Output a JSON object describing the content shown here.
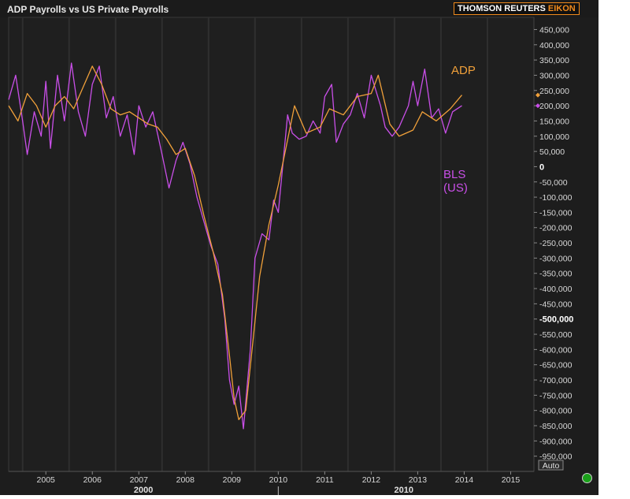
{
  "window": {
    "title": "ADP Payrolls vs US Private Payrolls",
    "brand_main": "THOMSON REUTERS",
    "brand_accent": "EIKON",
    "auto_button": "Auto",
    "status_icon": "green-status-dot-icon"
  },
  "colors": {
    "background": "#1d1d1d",
    "adp": "#f0a03a",
    "bls": "#c94fe8",
    "text": "#d8d8d8",
    "brand_accent": "#f08a1c"
  },
  "chart_data": {
    "type": "line",
    "title": "ADP Payrolls vs US Private Payrolls",
    "xlabel": "",
    "ylabel": "",
    "xlim": [
      2004.2,
      2015.5
    ],
    "ylim": [
      -1000000,
      490000
    ],
    "x_ticks": [
      "2005",
      "2006",
      "2007",
      "2008",
      "2009",
      "2010",
      "2011",
      "2012",
      "2013",
      "2014",
      "2015"
    ],
    "decade_labels": [
      "2000",
      "2010"
    ],
    "y_ticks": [
      450000,
      400000,
      350000,
      300000,
      250000,
      200000,
      150000,
      100000,
      50000,
      0,
      -50000,
      -100000,
      -150000,
      -200000,
      -250000,
      -300000,
      -350000,
      -400000,
      -450000,
      -500000,
      -550000,
      -600000,
      -650000,
      -700000,
      -750000,
      -800000,
      -850000,
      -900000,
      -950000
    ],
    "y_tick_labels": [
      "450,000",
      "400,000",
      "350,000",
      "300,000",
      "250,000",
      "200,000",
      "150,000",
      "100,000",
      "50,000",
      "0",
      "-50,000",
      "-100,000",
      "-150,000",
      "-200,000",
      "-250,000",
      "-300,000",
      "-350,000",
      "-400,000",
      "-450,000",
      "-500,000",
      "-550,000",
      "-600,000",
      "-650,000",
      "-700,000",
      "-750,000",
      "-800,000",
      "-850,000",
      "-900,000",
      "-950,000"
    ],
    "grid": "vertical",
    "series": [
      {
        "name": "ADP",
        "label_lines": [
          "ADP"
        ],
        "last_value": 235000,
        "points": [
          [
            2004.2,
            200000
          ],
          [
            2004.4,
            150000
          ],
          [
            2004.6,
            240000
          ],
          [
            2004.8,
            200000
          ],
          [
            2005.0,
            130000
          ],
          [
            2005.2,
            200000
          ],
          [
            2005.4,
            230000
          ],
          [
            2005.6,
            190000
          ],
          [
            2005.8,
            260000
          ],
          [
            2006.0,
            330000
          ],
          [
            2006.2,
            270000
          ],
          [
            2006.4,
            190000
          ],
          [
            2006.6,
            170000
          ],
          [
            2006.8,
            180000
          ],
          [
            2007.0,
            160000
          ],
          [
            2007.2,
            140000
          ],
          [
            2007.4,
            130000
          ],
          [
            2007.6,
            90000
          ],
          [
            2007.8,
            40000
          ],
          [
            2008.0,
            60000
          ],
          [
            2008.2,
            -30000
          ],
          [
            2008.4,
            -160000
          ],
          [
            2008.6,
            -280000
          ],
          [
            2008.8,
            -420000
          ],
          [
            2008.95,
            -620000
          ],
          [
            2009.05,
            -760000
          ],
          [
            2009.15,
            -830000
          ],
          [
            2009.3,
            -800000
          ],
          [
            2009.45,
            -580000
          ],
          [
            2009.6,
            -360000
          ],
          [
            2009.8,
            -190000
          ],
          [
            2010.0,
            -60000
          ],
          [
            2010.15,
            50000
          ],
          [
            2010.35,
            200000
          ],
          [
            2010.6,
            110000
          ],
          [
            2010.9,
            130000
          ],
          [
            2011.1,
            190000
          ],
          [
            2011.4,
            170000
          ],
          [
            2011.7,
            230000
          ],
          [
            2012.0,
            240000
          ],
          [
            2012.15,
            300000
          ],
          [
            2012.4,
            140000
          ],
          [
            2012.6,
            100000
          ],
          [
            2012.9,
            120000
          ],
          [
            2013.1,
            180000
          ],
          [
            2013.4,
            150000
          ],
          [
            2013.7,
            190000
          ],
          [
            2013.95,
            235000
          ]
        ]
      },
      {
        "name": "BLS (US)",
        "label_lines": [
          "BLS",
          "(US)"
        ],
        "last_value": 200000,
        "points": [
          [
            2004.2,
            220000
          ],
          [
            2004.35,
            300000
          ],
          [
            2004.5,
            150000
          ],
          [
            2004.6,
            40000
          ],
          [
            2004.75,
            180000
          ],
          [
            2004.9,
            100000
          ],
          [
            2005.0,
            280000
          ],
          [
            2005.1,
            60000
          ],
          [
            2005.25,
            300000
          ],
          [
            2005.4,
            150000
          ],
          [
            2005.55,
            340000
          ],
          [
            2005.7,
            180000
          ],
          [
            2005.85,
            100000
          ],
          [
            2006.0,
            270000
          ],
          [
            2006.15,
            330000
          ],
          [
            2006.3,
            160000
          ],
          [
            2006.45,
            230000
          ],
          [
            2006.6,
            100000
          ],
          [
            2006.75,
            170000
          ],
          [
            2006.9,
            40000
          ],
          [
            2007.0,
            200000
          ],
          [
            2007.15,
            130000
          ],
          [
            2007.3,
            180000
          ],
          [
            2007.5,
            40000
          ],
          [
            2007.65,
            -70000
          ],
          [
            2007.8,
            20000
          ],
          [
            2007.95,
            80000
          ],
          [
            2008.1,
            10000
          ],
          [
            2008.25,
            -100000
          ],
          [
            2008.4,
            -180000
          ],
          [
            2008.55,
            -260000
          ],
          [
            2008.7,
            -320000
          ],
          [
            2008.85,
            -500000
          ],
          [
            2008.95,
            -700000
          ],
          [
            2009.05,
            -780000
          ],
          [
            2009.15,
            -720000
          ],
          [
            2009.25,
            -860000
          ],
          [
            2009.4,
            -600000
          ],
          [
            2009.5,
            -300000
          ],
          [
            2009.65,
            -220000
          ],
          [
            2009.8,
            -240000
          ],
          [
            2009.9,
            -110000
          ],
          [
            2010.0,
            -150000
          ],
          [
            2010.1,
            10000
          ],
          [
            2010.2,
            170000
          ],
          [
            2010.3,
            110000
          ],
          [
            2010.45,
            90000
          ],
          [
            2010.6,
            100000
          ],
          [
            2010.75,
            150000
          ],
          [
            2010.9,
            110000
          ],
          [
            2011.0,
            230000
          ],
          [
            2011.15,
            270000
          ],
          [
            2011.25,
            80000
          ],
          [
            2011.4,
            140000
          ],
          [
            2011.55,
            170000
          ],
          [
            2011.7,
            240000
          ],
          [
            2011.85,
            160000
          ],
          [
            2012.0,
            300000
          ],
          [
            2012.1,
            250000
          ],
          [
            2012.2,
            200000
          ],
          [
            2012.3,
            130000
          ],
          [
            2012.45,
            100000
          ],
          [
            2012.6,
            130000
          ],
          [
            2012.8,
            200000
          ],
          [
            2012.9,
            280000
          ],
          [
            2013.0,
            200000
          ],
          [
            2013.15,
            320000
          ],
          [
            2013.3,
            160000
          ],
          [
            2013.45,
            190000
          ],
          [
            2013.6,
            110000
          ],
          [
            2013.75,
            180000
          ],
          [
            2013.95,
            200000
          ]
        ]
      }
    ]
  }
}
